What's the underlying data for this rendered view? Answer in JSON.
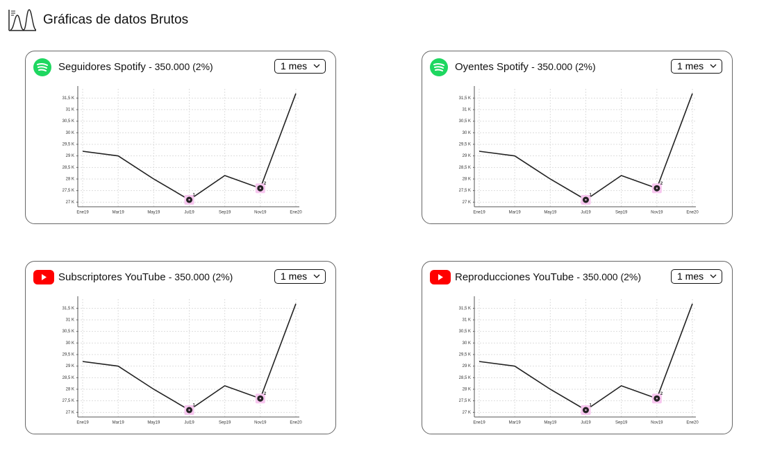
{
  "header": {
    "title": "Gráficas de datos Brutos"
  },
  "chart_data": [
    {
      "type": "line",
      "title": "Seguidores Spotify",
      "summary": "- 350.000 (2%)",
      "period": "1 mes",
      "categories": [
        "Ene19",
        "Mar19",
        "May19",
        "Jul19",
        "Sep19",
        "Nov19",
        "Ene20"
      ],
      "values": [
        29200,
        29000,
        28000,
        27100,
        28150,
        27600,
        31700
      ],
      "color": "#222222",
      "ylim": [
        26800,
        31900
      ],
      "yticks": [
        {
          "value": 27000,
          "label": "27 K"
        },
        {
          "value": 27500,
          "label": "27,5 K"
        },
        {
          "value": 28000,
          "label": "28 K"
        },
        {
          "value": 28500,
          "label": "28,5 K"
        },
        {
          "value": 29000,
          "label": "29 K"
        },
        {
          "value": 29500,
          "label": "29,5 K"
        },
        {
          "value": 30000,
          "label": "30 K"
        },
        {
          "value": 30500,
          "label": "30,5 K"
        },
        {
          "value": 31000,
          "label": "31 K"
        },
        {
          "value": 31500,
          "label": "31,5 K"
        }
      ],
      "grid": true,
      "annotations": [
        {
          "x": "Jul19",
          "label": "1"
        },
        {
          "x": "Nov19",
          "label": "2"
        }
      ]
    },
    {
      "type": "line",
      "title": "Oyentes Spotify",
      "summary": "- 350.000 (2%)",
      "period": "1 mes",
      "categories": [
        "Ene19",
        "Mar19",
        "May19",
        "Jul19",
        "Sep19",
        "Nov19",
        "Ene20"
      ],
      "values": [
        29200,
        29000,
        28000,
        27100,
        28150,
        27600,
        31700
      ],
      "color": "#222222",
      "ylim": [
        26800,
        31900
      ],
      "yticks": [
        {
          "value": 27000,
          "label": "27 K"
        },
        {
          "value": 27500,
          "label": "27,5 K"
        },
        {
          "value": 28000,
          "label": "28 K"
        },
        {
          "value": 28500,
          "label": "28,5 K"
        },
        {
          "value": 29000,
          "label": "29 K"
        },
        {
          "value": 29500,
          "label": "29,5 K"
        },
        {
          "value": 30000,
          "label": "30 K"
        },
        {
          "value": 30500,
          "label": "30,5 K"
        },
        {
          "value": 31000,
          "label": "31 K"
        },
        {
          "value": 31500,
          "label": "31,5 K"
        }
      ],
      "grid": true,
      "annotations": [
        {
          "x": "Jul19",
          "label": "1"
        },
        {
          "x": "Nov19",
          "label": "2"
        }
      ]
    },
    {
      "type": "line",
      "title": "Subscriptores YouTube",
      "summary": "- 350.000 (2%)",
      "period": "1 mes",
      "categories": [
        "Ene19",
        "Mar19",
        "May19",
        "Jul19",
        "Sep19",
        "Nov19",
        "Ene20"
      ],
      "values": [
        29200,
        29000,
        28000,
        27100,
        28150,
        27600,
        31700
      ],
      "color": "#222222",
      "ylim": [
        26800,
        31900
      ],
      "yticks": [
        {
          "value": 27000,
          "label": "27 K"
        },
        {
          "value": 27500,
          "label": "27,5 K"
        },
        {
          "value": 28000,
          "label": "28 K"
        },
        {
          "value": 28500,
          "label": "28,5 K"
        },
        {
          "value": 29000,
          "label": "29 K"
        },
        {
          "value": 29500,
          "label": "29,5 K"
        },
        {
          "value": 30000,
          "label": "30 K"
        },
        {
          "value": 30500,
          "label": "30,5 K"
        },
        {
          "value": 31000,
          "label": "31 K"
        },
        {
          "value": 31500,
          "label": "31,5 K"
        }
      ],
      "grid": true,
      "annotations": [
        {
          "x": "Jul19",
          "label": "1"
        },
        {
          "x": "Nov19",
          "label": "2"
        }
      ]
    },
    {
      "type": "line",
      "title": "Reproducciones YouTube",
      "summary": "- 350.000 (2%)",
      "period": "1 mes",
      "categories": [
        "Ene19",
        "Mar19",
        "May19",
        "Jul19",
        "Sep19",
        "Nov19",
        "Ene20"
      ],
      "values": [
        29200,
        29000,
        28000,
        27100,
        28150,
        27600,
        31700
      ],
      "color": "#222222",
      "ylim": [
        26800,
        31900
      ],
      "yticks": [
        {
          "value": 27000,
          "label": "27 K"
        },
        {
          "value": 27500,
          "label": "27,5 K"
        },
        {
          "value": 28000,
          "label": "28 K"
        },
        {
          "value": 28500,
          "label": "28,5 K"
        },
        {
          "value": 29000,
          "label": "29 K"
        },
        {
          "value": 29500,
          "label": "29,5 K"
        },
        {
          "value": 30000,
          "label": "30 K"
        },
        {
          "value": 30500,
          "label": "30,5 K"
        },
        {
          "value": 31000,
          "label": "31 K"
        },
        {
          "value": 31500,
          "label": "31,5 K"
        }
      ],
      "grid": true,
      "annotations": [
        {
          "x": "Jul19",
          "label": "1"
        },
        {
          "x": "Nov19",
          "label": "2"
        }
      ]
    }
  ]
}
